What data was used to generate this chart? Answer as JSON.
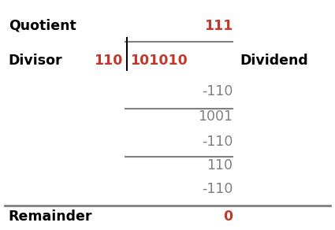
{
  "bg_color": "#ffffff",
  "red_color": "#c0392b",
  "gray_color": "#808080",
  "black_color": "#000000",
  "label_quotient": "Quotient",
  "label_divisor": "Divisor",
  "label_dividend": "Dividend",
  "label_remainder": "Remainder",
  "quotient": "111",
  "divisor": "110",
  "dividend": "101010",
  "remainder": "0",
  "steps": [
    "-110",
    "1001",
    "-110",
    "110",
    "-110"
  ],
  "figsize": [
    4.25,
    2.92
  ],
  "dpi": 100,
  "font_size": 12.5,
  "font_family": "Arial"
}
